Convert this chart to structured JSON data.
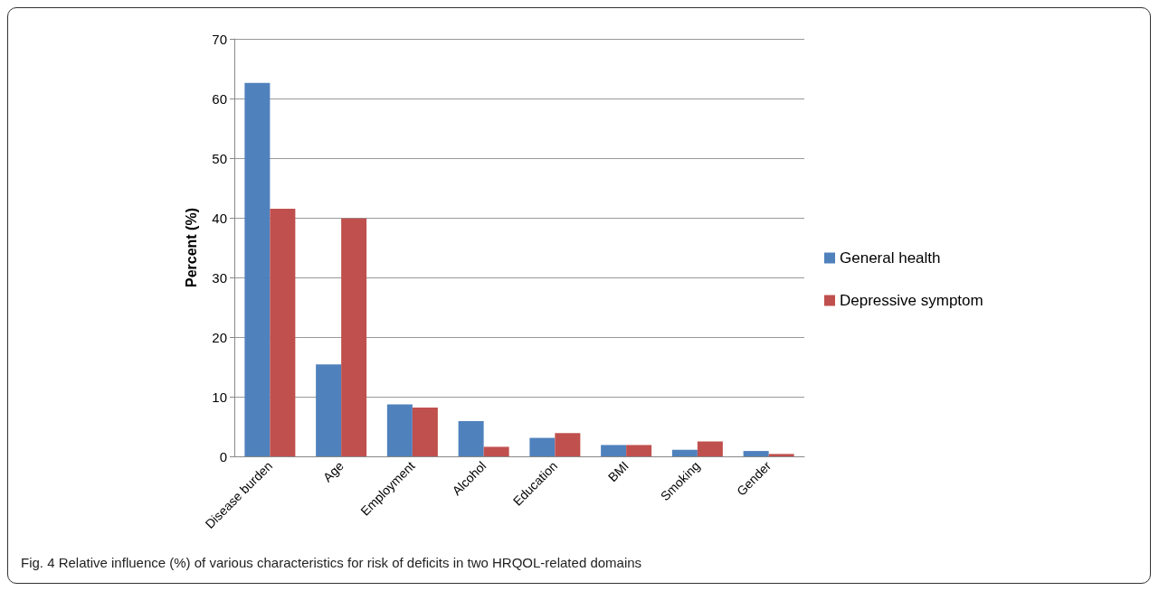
{
  "chart_data": {
    "type": "bar",
    "ylabel": "Percent (%)",
    "categories": [
      "Disease burden",
      "Age",
      "Employment",
      "Alcohol",
      "Education",
      "BMI",
      "Smoking",
      "Gender"
    ],
    "series": [
      {
        "name": "General health",
        "color": "#4f81bd",
        "values": [
          62.6,
          15.4,
          8.7,
          5.9,
          3.1,
          1.9,
          1.1,
          0.9
        ]
      },
      {
        "name": "Depressive symptom",
        "color": "#c0504d",
        "values": [
          41.5,
          39.9,
          8.2,
          1.6,
          3.9,
          1.9,
          2.5,
          0.4
        ]
      }
    ],
    "ylim": [
      0,
      70
    ],
    "yticks": [
      0,
      10,
      20,
      30,
      40,
      50,
      60,
      70
    ],
    "grid": "y",
    "legend": "right",
    "annotations": [
      "Fig. 4 Relative influence (%) of various characteristics for risk of deficits in two HRQOL-related domains"
    ]
  }
}
